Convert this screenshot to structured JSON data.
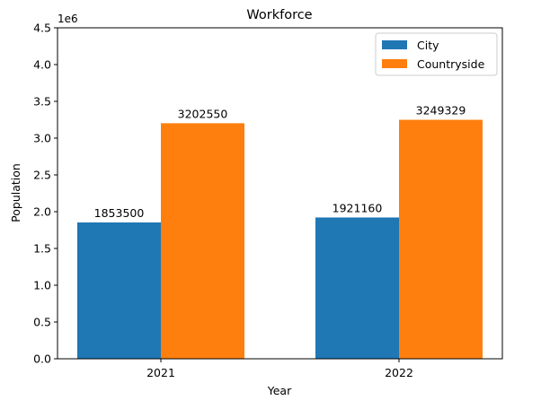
{
  "chart_data": {
    "type": "bar",
    "title": "Workforce",
    "xlabel": "Year",
    "ylabel": "Population",
    "offset_label": "1e6",
    "categories": [
      "2021",
      "2022"
    ],
    "series": [
      {
        "name": "City",
        "color": "#1f77b4",
        "values": [
          1853500,
          1921160
        ],
        "labels": [
          "1853500",
          "1921160"
        ]
      },
      {
        "name": "Countryside",
        "color": "#ff7f0e",
        "values": [
          3202550,
          3249329
        ],
        "labels": [
          "3202550",
          "3249329"
        ]
      }
    ],
    "ylim": [
      0,
      4500000
    ],
    "yticks": [
      0,
      500000,
      1000000,
      1500000,
      2000000,
      2500000,
      3000000,
      3500000,
      4000000,
      4500000
    ],
    "ytick_labels": [
      "0.0",
      "0.5",
      "1.0",
      "1.5",
      "2.0",
      "2.5",
      "3.0",
      "3.5",
      "4.0",
      "4.5"
    ],
    "legend_position": "top-right",
    "grid": false
  }
}
